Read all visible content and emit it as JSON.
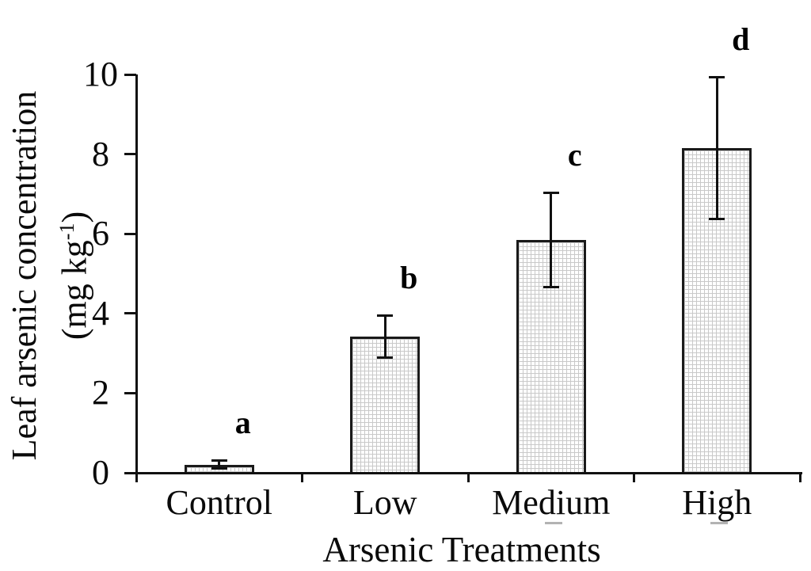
{
  "figure": {
    "background_color": "#ffffff",
    "text_color": "#000000",
    "bar_fill_color": "#ffffff",
    "bar_pattern_color": "#c9c9c9",
    "bar_border_color": "#1a1a1a",
    "error_bar_color": "#111111",
    "dash_color": "#b3b3b3"
  },
  "chart_data": {
    "type": "bar",
    "title": "",
    "xlabel": "Arsenic Treatments",
    "ylabel_line1": "Leaf arsenic concentration",
    "ylabel_unit_open": "(mg kg",
    "ylabel_unit_sup": "-1",
    "ylabel_unit_close": ")",
    "categories": [
      "Control",
      "Low",
      "Medium",
      "High"
    ],
    "values": [
      0.2,
      3.42,
      5.84,
      8.15
    ],
    "errors": [
      0.1,
      0.52,
      1.18,
      1.78
    ],
    "sig_letters": [
      "a",
      "b",
      "c",
      "d"
    ],
    "category_underline": [
      false,
      false,
      true,
      true
    ],
    "ylim": [
      0,
      10
    ],
    "yticks": [
      0,
      2,
      4,
      6,
      8,
      10
    ],
    "grid": false,
    "legend": "none",
    "error_bars": "plus-minus"
  }
}
